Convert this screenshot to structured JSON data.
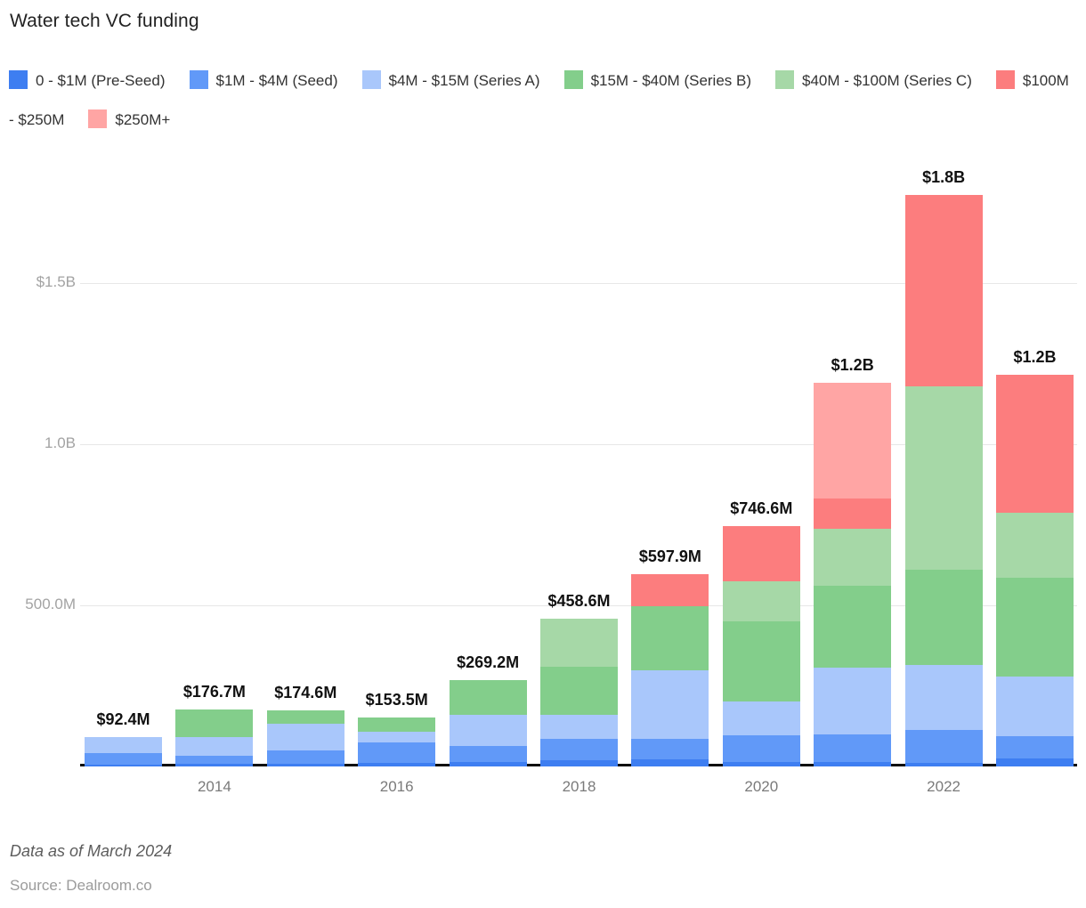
{
  "title": "Water tech VC funding",
  "footer": {
    "note": "Data as of March 2024",
    "source": "Source: Dealroom.co"
  },
  "chart_data": {
    "type": "bar",
    "subtype": "stacked-vertical",
    "title": "Water tech VC funding",
    "unit": "USD millions",
    "grid": "horizontal",
    "legend_position": "top",
    "categories": [
      2013,
      2014,
      2015,
      2016,
      2017,
      2018,
      2019,
      2020,
      2021,
      2022,
      2023
    ],
    "x_tick_labels": [
      "2014",
      "2016",
      "2018",
      "2020",
      "2022"
    ],
    "x_tick_category_indexes": [
      1,
      3,
      5,
      7,
      9
    ],
    "y_tick_labels": [
      "500.0M",
      "1.0B",
      "$1.5B"
    ],
    "y_gridlines_musd": [
      500,
      1000,
      1500
    ],
    "ylim_musd": [
      0,
      1850
    ],
    "series": [
      {
        "name": "0 - $1M (Pre-Seed)",
        "color": "#3E7EF1",
        "values": [
          6,
          8,
          8,
          10,
          14,
          19,
          22,
          14,
          14,
          11,
          25
        ]
      },
      {
        "name": "$1M - $4M (Seed)",
        "color": "#6199F8",
        "values": [
          36,
          25,
          42,
          65,
          50,
          66,
          64,
          83,
          86,
          102,
          69
        ]
      },
      {
        "name": "$4M - $15M (Series A)",
        "color": "#A9C7FB",
        "values": [
          50.4,
          59,
          82.6,
          33.5,
          97,
          75,
          213,
          105,
          207,
          202,
          185
        ]
      },
      {
        "name": "$15M - $40M (Series B)",
        "color": "#83CE8B",
        "values": [
          0,
          84.7,
          42,
          45,
          108.2,
          149,
          199,
          249,
          254,
          296,
          307
        ]
      },
      {
        "name": "$40M - $100M (Series C)",
        "color": "#A6D8A7",
        "values": [
          0,
          0,
          0,
          0,
          0,
          149.6,
          0,
          124,
          177,
          570,
          202
        ]
      },
      {
        "name": "$100M - $250M",
        "color": "#FC7D7E",
        "values": [
          0,
          0,
          0,
          0,
          0,
          0,
          99.9,
          171.6,
          94,
          595,
          428
        ]
      },
      {
        "name": "$250M+",
        "color": "#FFA5A4",
        "values": [
          0,
          0,
          0,
          0,
          0,
          0,
          0,
          0,
          360,
          0,
          0
        ]
      }
    ],
    "totals_musd": [
      92.4,
      176.7,
      174.6,
      153.5,
      269.2,
      458.6,
      597.9,
      746.6,
      1192,
      1776,
      1216
    ],
    "total_labels": [
      "$92.4M",
      "$176.7M",
      "$174.6M",
      "$153.5M",
      "$269.2M",
      "$458.6M",
      "$597.9M",
      "$746.6M",
      "$1.2B",
      "$1.8B",
      "$1.2B"
    ]
  }
}
